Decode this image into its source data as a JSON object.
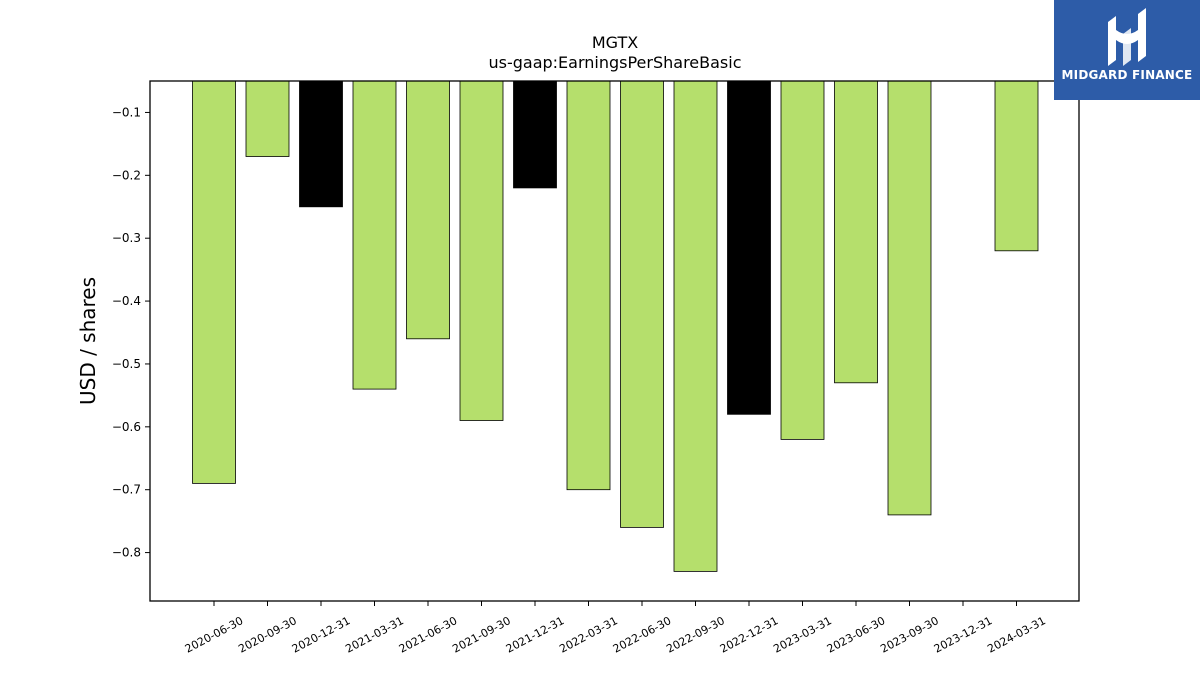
{
  "brand": {
    "name": "MIDGARD FINANCE",
    "bg_color": "#2d5ca8"
  },
  "chart_data": {
    "type": "bar",
    "title": "MGTX",
    "subtitle": "us-gaap:EarningsPerShareBasic",
    "ylabel": "USD / shares",
    "xlabel": "",
    "categories": [
      "2020-06-30",
      "2020-09-30",
      "2020-12-31",
      "2021-03-31",
      "2021-06-30",
      "2021-09-30",
      "2021-12-31",
      "2022-03-31",
      "2022-06-30",
      "2022-09-30",
      "2022-12-31",
      "2023-03-31",
      "2023-06-30",
      "2023-09-30",
      "2023-12-31",
      "2024-03-31"
    ],
    "values": [
      -0.69,
      -0.17,
      -0.25,
      -0.54,
      -0.46,
      -0.59,
      -0.22,
      -0.7,
      -0.76,
      -0.83,
      -0.58,
      -0.62,
      -0.53,
      -0.74,
      null,
      -0.32
    ],
    "bar_colors": [
      "#b5df6c",
      "#b5df6c",
      "#000000",
      "#b5df6c",
      "#b5df6c",
      "#b5df6c",
      "#000000",
      "#b5df6c",
      "#b5df6c",
      "#b5df6c",
      "#000000",
      "#b5df6c",
      "#b5df6c",
      "#b5df6c",
      "#b5df6c",
      "#b5df6c"
    ],
    "ylim": [
      -0.877,
      -0.05
    ],
    "yticks": [
      -0.1,
      -0.2,
      -0.3,
      -0.4,
      -0.5,
      -0.6,
      -0.7,
      -0.8
    ],
    "grid": false,
    "legend": "none"
  }
}
